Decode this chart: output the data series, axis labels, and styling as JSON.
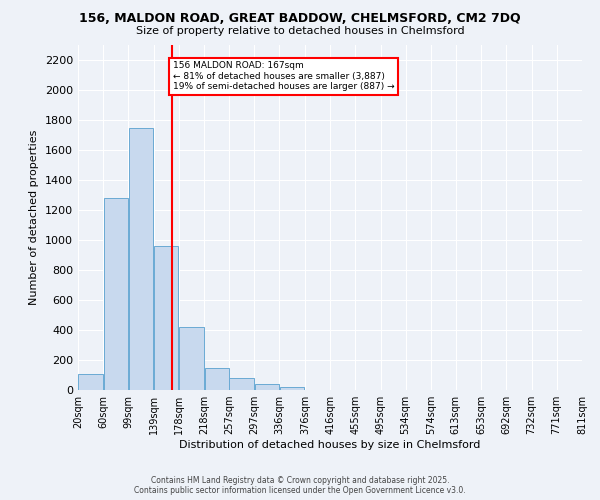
{
  "title": "156, MALDON ROAD, GREAT BADDOW, CHELMSFORD, CM2 7DQ",
  "subtitle": "Size of property relative to detached houses in Chelmsford",
  "xlabel": "Distribution of detached houses by size in Chelmsford",
  "ylabel": "Number of detached properties",
  "bar_color": "#c8d9ee",
  "bar_edge_color": "#6aaad4",
  "bins": [
    20,
    60,
    99,
    139,
    178,
    218,
    257,
    297,
    336,
    376,
    416,
    455,
    495,
    534,
    574,
    613,
    653,
    692,
    732,
    771,
    811
  ],
  "bin_labels": [
    "20sqm",
    "60sqm",
    "99sqm",
    "139sqm",
    "178sqm",
    "218sqm",
    "257sqm",
    "297sqm",
    "336sqm",
    "376sqm",
    "416sqm",
    "455sqm",
    "495sqm",
    "534sqm",
    "574sqm",
    "613sqm",
    "653sqm",
    "692sqm",
    "732sqm",
    "771sqm",
    "811sqm"
  ],
  "values": [
    110,
    1280,
    1750,
    960,
    420,
    150,
    80,
    40,
    20,
    0,
    0,
    0,
    0,
    0,
    0,
    0,
    0,
    0,
    0,
    0
  ],
  "ylim": [
    0,
    2300
  ],
  "yticks": [
    0,
    200,
    400,
    600,
    800,
    1000,
    1200,
    1400,
    1600,
    1800,
    2000,
    2200
  ],
  "red_line_x": 167,
  "annotation_text": "156 MALDON ROAD: 167sqm\n← 81% of detached houses are smaller (3,887)\n19% of semi-detached houses are larger (887) →",
  "annotation_box_color": "white",
  "annotation_box_edge_color": "red",
  "background_color": "#eef2f8",
  "grid_color": "white",
  "footer_line1": "Contains HM Land Registry data © Crown copyright and database right 2025.",
  "footer_line2": "Contains public sector information licensed under the Open Government Licence v3.0."
}
